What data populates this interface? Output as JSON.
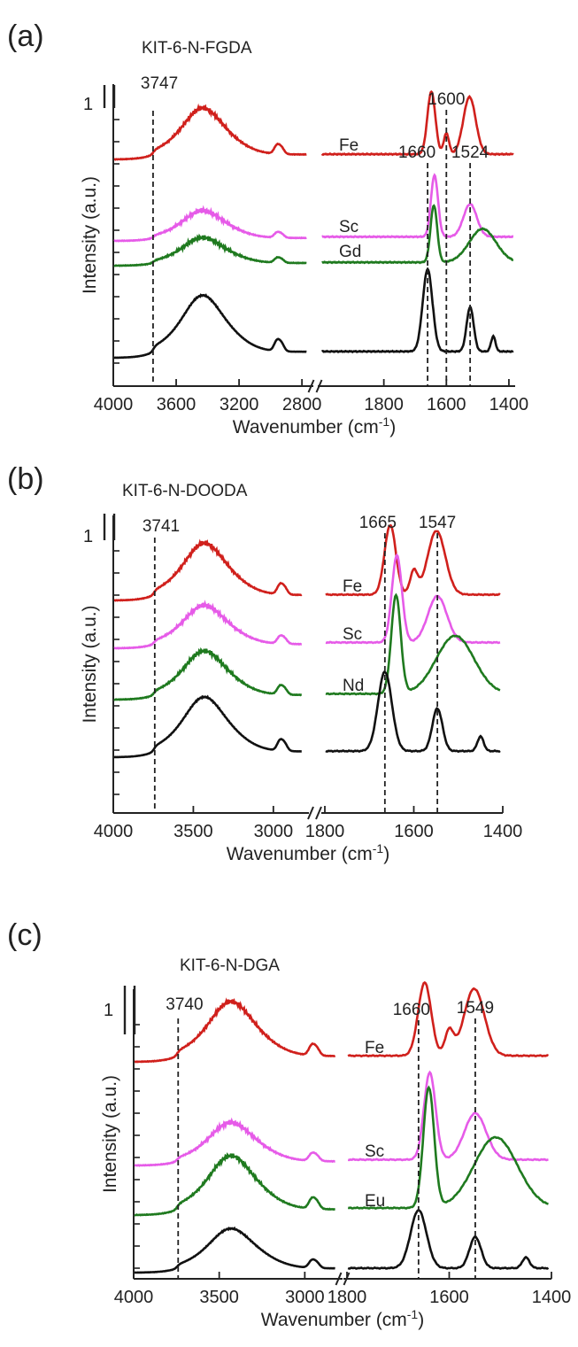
{
  "chart_data": [
    {
      "type": "line",
      "panel": "(a)",
      "title": "KIT-6-N-FGDA",
      "xlabel": "Wavenumber (cm-1)",
      "xlabel_main": "Wavenumber (cm",
      "xlabel_sup": "-1",
      "xlabel_end": ")",
      "ylabel": "Intensity (a.u.)",
      "scale_bar": "1",
      "xlim_left": [
        4000,
        2750
      ],
      "xlim_right": [
        2000,
        1380
      ],
      "xticks_left": [
        4000,
        3600,
        3200,
        2800
      ],
      "xticks_right": [
        1800,
        1600,
        1400
      ],
      "left_peak": {
        "label": "3747",
        "x": 3747
      },
      "right_peaks": [
        {
          "label": "1660",
          "x": 1660
        },
        {
          "label": "1600",
          "x": 1600
        },
        {
          "label": "1524",
          "x": 1524
        }
      ],
      "series": [
        {
          "name": "Fe",
          "color": "#d0201c",
          "offset": 3.0
        },
        {
          "name": "Sc",
          "color": "#e65be8",
          "offset": 2.0
        },
        {
          "name": "Gd",
          "color": "#1f7a1f",
          "offset": 1.0
        },
        {
          "name": "",
          "color": "#111111",
          "offset": 0.0
        }
      ]
    },
    {
      "type": "line",
      "panel": "(b)",
      "title": "KIT-6-N-DOODA",
      "xlabel": "Wavenumber (cm-1)",
      "xlabel_main": "Wavenumber (cm",
      "xlabel_sup": "-1",
      "xlabel_end": ")",
      "ylabel": "Intensity (a.u.)",
      "scale_bar": "1",
      "xlim_left": [
        4000,
        2800
      ],
      "xlim_right": [
        1800,
        1400
      ],
      "xticks_left": [
        4000,
        3500,
        3000
      ],
      "xticks_right": [
        1800,
        1600,
        1400
      ],
      "left_peak": {
        "label": "3741",
        "x": 3741
      },
      "right_peaks": [
        {
          "label": "1665",
          "x": 1665
        },
        {
          "label": "1547",
          "x": 1547
        }
      ],
      "series": [
        {
          "name": "Fe",
          "color": "#d0201c",
          "offset": 3.0
        },
        {
          "name": "Sc",
          "color": "#e65be8",
          "offset": 2.0
        },
        {
          "name": "Nd",
          "color": "#1f7a1f",
          "offset": 1.0
        },
        {
          "name": "",
          "color": "#111111",
          "offset": 0.0
        }
      ]
    },
    {
      "type": "line",
      "panel": "(c)",
      "title": "KIT-6-N-DGA",
      "xlabel": "Wavenumber (cm-1)",
      "xlabel_main": "Wavenumber (cm",
      "xlabel_sup": "-1",
      "xlabel_end": ")",
      "ylabel": "Intensity (a.u.)",
      "scale_bar": "1",
      "xlim_left": [
        4000,
        2800
      ],
      "xlim_right": [
        1800,
        1400
      ],
      "xticks_left": [
        4000,
        3500,
        3000
      ],
      "xticks_right": [
        1800,
        1600,
        1400
      ],
      "left_peak": {
        "label": "3740",
        "x": 3740
      },
      "right_peaks": [
        {
          "label": "1660",
          "x": 1660
        },
        {
          "label": "1549",
          "x": 1549
        }
      ],
      "series": [
        {
          "name": "Fe",
          "color": "#d0201c",
          "offset": 3.0
        },
        {
          "name": "Sc",
          "color": "#e65be8",
          "offset": 2.0
        },
        {
          "name": "Eu",
          "color": "#1f7a1f",
          "offset": 1.0
        },
        {
          "name": "",
          "color": "#111111",
          "offset": 0.0
        }
      ]
    }
  ]
}
